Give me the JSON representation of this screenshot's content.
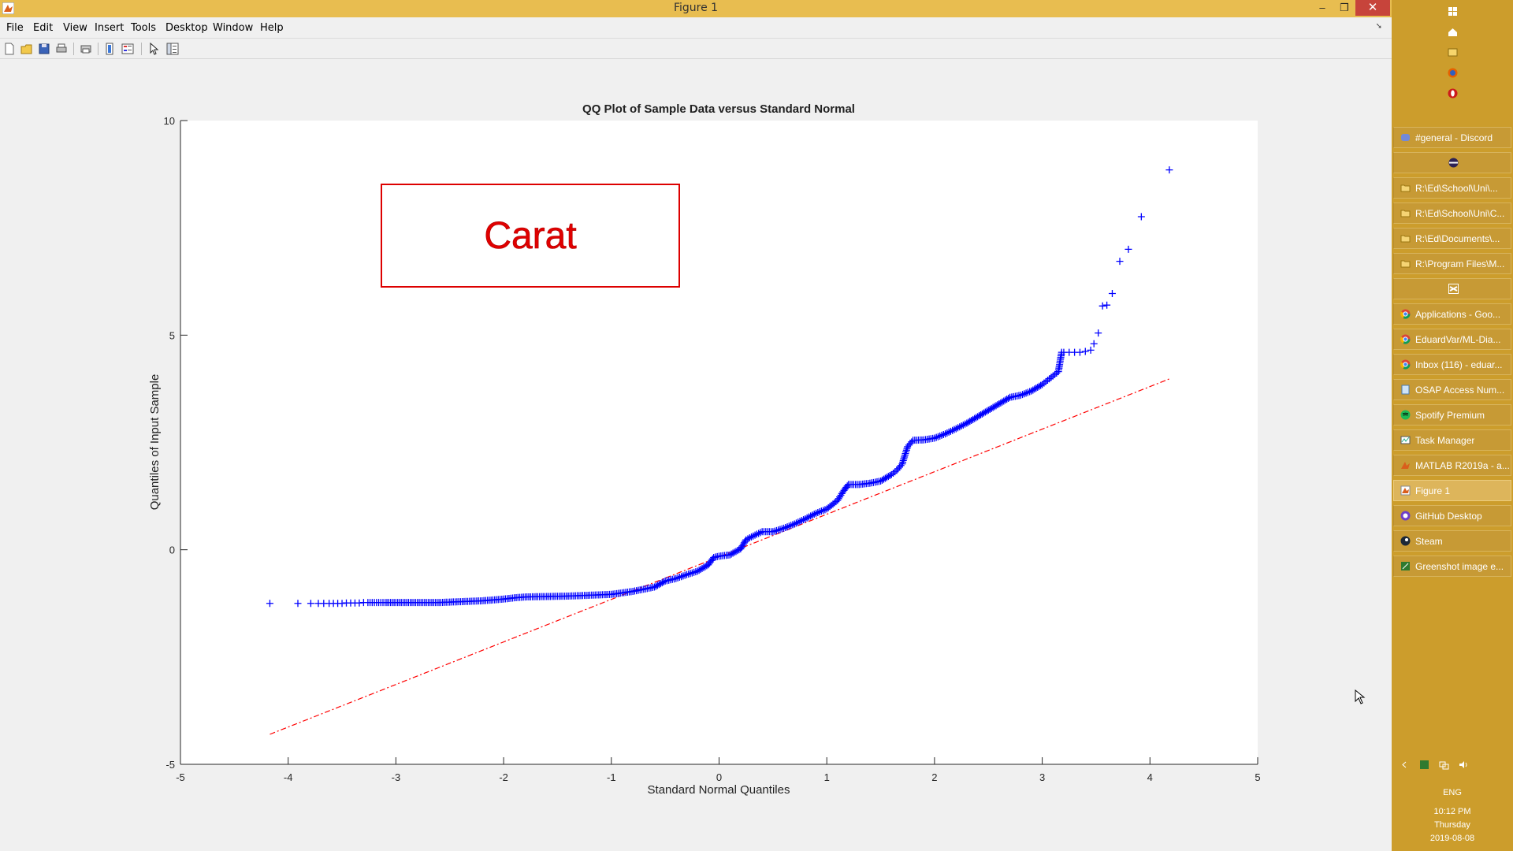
{
  "window": {
    "title": "Figure 1",
    "minimize_glyph": "–",
    "maximize_glyph": "❐",
    "close_glyph": "✕"
  },
  "menu": [
    "File",
    "Edit",
    "View",
    "Insert",
    "Tools",
    "Desktop",
    "Window",
    "Help"
  ],
  "menu_dock_glyph": "➘",
  "toolbar": [
    "new-figure-icon",
    "open-file-icon",
    "save-icon",
    "print-icon",
    "print-preview-icon",
    "colorbar-icon",
    "legend-icon",
    "pointer-icon",
    "property-editor-icon"
  ],
  "chart_data": {
    "type": "scatter",
    "title": "QQ Plot of Sample Data versus Standard Normal",
    "xlabel": "Standard Normal Quantiles",
    "ylabel": "Quantiles of Input Sample",
    "xlim": [
      -5,
      5
    ],
    "ylim": [
      -5,
      10
    ],
    "xticks": [
      "-5",
      "-4",
      "-3",
      "-2",
      "-1",
      "0",
      "1",
      "2",
      "3",
      "4",
      "5"
    ],
    "yticks": [
      "-5",
      "0",
      "5",
      "10"
    ],
    "grid": false,
    "marker": "+",
    "marker_color": "#0000ff",
    "reference_line_color": "#ff0000",
    "series": [
      {
        "style": "markers",
        "x": [
          -4.17,
          -3.91,
          -3.79,
          -3.72,
          -3.67,
          -3.62,
          -3.58,
          -3.54,
          -3.5,
          -3.46,
          -3.42,
          -3.38,
          -3.34,
          -3.3,
          -3.26,
          -3.22,
          -3.18,
          -3.1,
          -3.0,
          -2.9,
          -2.8,
          -2.7,
          -2.6,
          -2.5,
          -2.4,
          -2.3,
          -2.2,
          -2.1,
          -2.0,
          -1.9,
          -1.8,
          -1.6,
          -1.4,
          -1.2,
          -1.0,
          -0.8,
          -0.6,
          -0.5,
          -0.4,
          -0.3,
          -0.2,
          -0.1,
          -0.05,
          0.0,
          0.1,
          0.2,
          0.25,
          0.3,
          0.4,
          0.5,
          0.6,
          0.7,
          0.8,
          0.9,
          1.0,
          1.1,
          1.15,
          1.2,
          1.3,
          1.4,
          1.5,
          1.6,
          1.65,
          1.7,
          1.75,
          1.8,
          1.9,
          2.0,
          2.1,
          2.2,
          2.3,
          2.4,
          2.5,
          2.6,
          2.7,
          2.8,
          2.9,
          3.0,
          3.05,
          3.1,
          3.15,
          3.18,
          3.2,
          3.25,
          3.3,
          3.35,
          3.4,
          3.45,
          3.48,
          3.52,
          3.56,
          3.6,
          3.65,
          3.72,
          3.8,
          3.92,
          4.18
        ],
        "y": [
          -1.25,
          -1.25,
          -1.25,
          -1.25,
          -1.25,
          -1.25,
          -1.25,
          -1.25,
          -1.25,
          -1.24,
          -1.24,
          -1.24,
          -1.24,
          -1.23,
          -1.23,
          -1.23,
          -1.23,
          -1.23,
          -1.23,
          -1.23,
          -1.23,
          -1.23,
          -1.23,
          -1.22,
          -1.21,
          -1.2,
          -1.19,
          -1.17,
          -1.15,
          -1.12,
          -1.1,
          -1.09,
          -1.08,
          -1.06,
          -1.04,
          -0.97,
          -0.87,
          -0.73,
          -0.67,
          -0.58,
          -0.5,
          -0.35,
          -0.18,
          -0.15,
          -0.12,
          0.02,
          0.23,
          0.3,
          0.42,
          0.42,
          0.5,
          0.6,
          0.72,
          0.85,
          0.95,
          1.15,
          1.35,
          1.52,
          1.52,
          1.55,
          1.6,
          1.75,
          1.85,
          2.0,
          2.4,
          2.55,
          2.56,
          2.6,
          2.7,
          2.82,
          2.95,
          3.1,
          3.25,
          3.4,
          3.55,
          3.6,
          3.7,
          3.85,
          3.95,
          4.05,
          4.15,
          4.6,
          4.6,
          4.6,
          4.6,
          4.6,
          4.62,
          4.65,
          4.8,
          5.05,
          5.68,
          5.7,
          5.97,
          6.72,
          7.0,
          7.76,
          8.85
        ]
      },
      {
        "style": "dash-dot-line",
        "x": [
          -4.17,
          4.18
        ],
        "y": [
          -4.3,
          3.98
        ]
      }
    ]
  },
  "annotation": {
    "text": "Carat",
    "color": "#e00000"
  },
  "taskbar": {
    "top_icons": [
      "windows-start-icon",
      "home-icon",
      "file-manager-icon",
      "firefox-icon",
      "opera-icon"
    ],
    "items": [
      {
        "label": "#general - Discord",
        "icon": "discord-icon"
      },
      {
        "label": "",
        "icon": "eclipse-icon"
      },
      {
        "label": "R:\\Ed\\School\\Uni\\...",
        "icon": "folder-icon"
      },
      {
        "label": "R:\\Ed\\School\\Uni\\C...",
        "icon": "folder-icon"
      },
      {
        "label": "R:\\Ed\\Documents\\...",
        "icon": "folder-icon"
      },
      {
        "label": "R:\\Program Files\\M...",
        "icon": "folder-icon"
      },
      {
        "label": "",
        "icon": "visual-studio-icon"
      },
      {
        "label": "Applications - Goo...",
        "icon": "chrome-icon"
      },
      {
        "label": "EduardVar/ML-Dia...",
        "icon": "chrome-icon"
      },
      {
        "label": "Inbox (116) - eduar...",
        "icon": "chrome-icon"
      },
      {
        "label": "OSAP Access Num...",
        "icon": "notepad-icon"
      },
      {
        "label": "Spotify Premium",
        "icon": "spotify-icon"
      },
      {
        "label": "Task Manager",
        "icon": "task-manager-icon"
      },
      {
        "label": "MATLAB R2019a - a...",
        "icon": "matlab-icon"
      },
      {
        "label": "Figure 1",
        "icon": "matlab-figure-icon",
        "active": true
      },
      {
        "label": "GitHub Desktop",
        "icon": "github-desktop-icon"
      },
      {
        "label": "Steam",
        "icon": "steam-icon"
      },
      {
        "label": "Greenshot image e...",
        "icon": "greenshot-icon"
      }
    ],
    "tray_icons": [
      "tray-expand-icon",
      "greenshot-tray-icon",
      "network-icon",
      "volume-icon"
    ],
    "language": "ENG",
    "time": "10:12 PM",
    "day": "Thursday",
    "date": "2019-08-08"
  }
}
